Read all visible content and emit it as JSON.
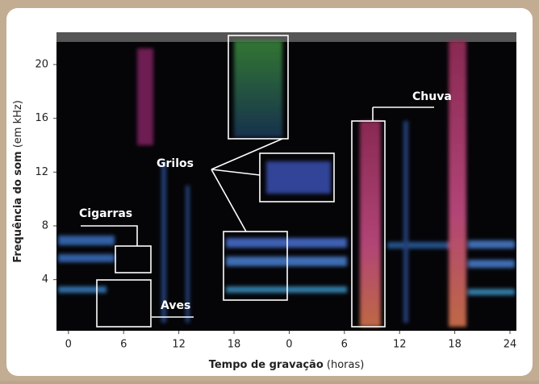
{
  "chart_data": {
    "type": "spectrogram",
    "ylabel": "Frequência do som",
    "ylabel_unit": "(em kHz)",
    "xlabel": "Tempo de gravação",
    "xlabel_unit": "(horas)",
    "xlim": [
      -1.3,
      48.7
    ],
    "xticks": [
      0,
      6,
      12,
      18,
      {
        "value": 24,
        "label": "0"
      },
      {
        "value": 30,
        "label": "6"
      },
      {
        "value": 36,
        "label": "12"
      },
      {
        "value": 42,
        "label": "18"
      },
      {
        "value": 48,
        "label": "24"
      }
    ],
    "ylim": [
      0.2,
      22.4
    ],
    "yticks": [
      4,
      8,
      12,
      16,
      20
    ],
    "annotations": [
      "Cigarras",
      "Grilos",
      "Aves",
      "Chuva"
    ]
  }
}
